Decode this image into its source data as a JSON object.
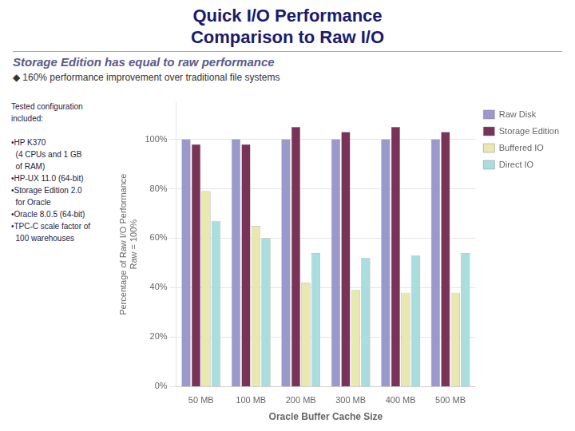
{
  "chart_data": {
    "type": "bar",
    "title": "Quick I/O Performance\nComparison to Raw I/O",
    "subtitle": "Storage Edition has equal to raw performance",
    "annotations": [
      "◆ 160% performance improvement over traditional file systems",
      "Tested configuration\nincluded:\n\n•HP K370\n  (4 CPUs and 1 GB\n  of RAM)\n•HP-UX 11.0 (64-bit)\n•Storage Edition 2.0\n  for Oracle\n•Oracle 8.0.5 (64-bit)\n•TPC-C scale factor of\n  100 warehouses"
    ],
    "x_label": "Oracle Buffer Cache Size",
    "y_label": "Percentage of Raw I/O Performance\nRaw = 100%",
    "categories": [
      "50 MB",
      "100 MB",
      "200 MB",
      "300 MB",
      "400 MB",
      "500 MB"
    ],
    "series": [
      {
        "name": "Raw Disk",
        "color": "#9999cc",
        "values": [
          100,
          100,
          100,
          100,
          100,
          100
        ]
      },
      {
        "name": "Storage Edition",
        "color": "#7a3358",
        "values": [
          98,
          98,
          105,
          103,
          105,
          103
        ]
      },
      {
        "name": "Buffered IO",
        "color": "#e8e8b0",
        "values": [
          79,
          65,
          42,
          39,
          38,
          38
        ]
      },
      {
        "name": "Direct IO",
        "color": "#aadddd",
        "values": [
          67,
          60,
          54,
          52,
          53,
          54
        ]
      }
    ],
    "ylim": [
      0,
      115
    ],
    "yticks": [
      {
        "value": 0,
        "label": "0%"
      },
      {
        "value": 20,
        "label": "20%"
      },
      {
        "value": 40,
        "label": "40%"
      },
      {
        "value": 60,
        "label": "60%"
      },
      {
        "value": 80,
        "label": "80%"
      },
      {
        "value": 100,
        "label": "100%"
      }
    ],
    "grid": true,
    "legend": "right"
  }
}
